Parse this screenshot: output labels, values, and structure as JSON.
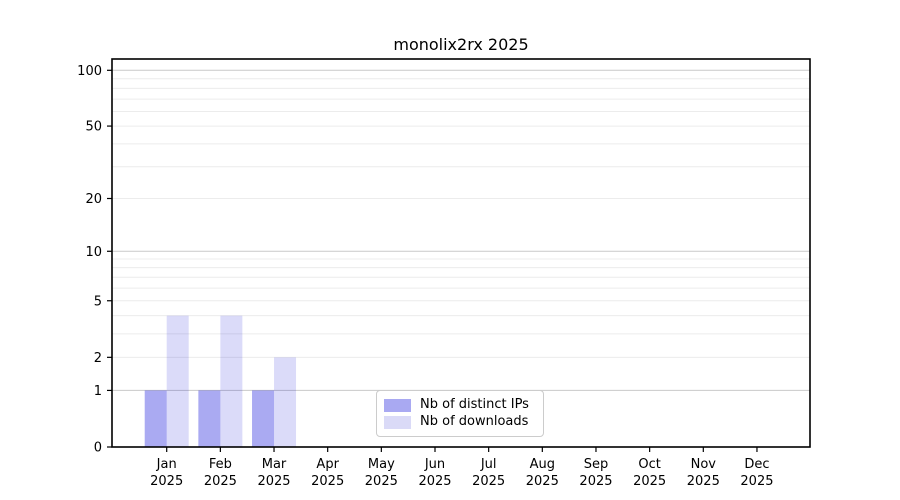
{
  "figure": {
    "background_color": "#ffffff"
  },
  "chart_data": {
    "type": "bar",
    "title": "monolix2rx 2025",
    "xlabel": "",
    "ylabel": "",
    "categories": [
      "Jan",
      "Feb",
      "Mar",
      "Apr",
      "May",
      "Jun",
      "Jul",
      "Aug",
      "Sep",
      "Oct",
      "Nov",
      "Dec"
    ],
    "category_year": "2025",
    "series": [
      {
        "name": "Nb of distinct IPs",
        "key": "distinct-ips",
        "legend_color": "#a9a9f2",
        "fill_opacity": 0.35,
        "values": [
          1,
          1,
          1,
          0,
          0,
          0,
          0,
          0,
          0,
          0,
          0,
          0
        ]
      },
      {
        "name": "Nb of downloads",
        "key": "downloads",
        "legend_color": "#dadaf7",
        "fill_opacity": 0.15,
        "values": [
          4,
          4,
          2,
          0,
          0,
          0,
          0,
          0,
          0,
          0,
          0,
          0
        ]
      }
    ],
    "bar_base_rgb": "12,12,218",
    "y_scale": "log1p",
    "ylim": [
      0,
      115
    ],
    "y_ticks": [
      0,
      1,
      2,
      5,
      10,
      20,
      50,
      100
    ],
    "gridlines": {
      "on": true,
      "minor_values": [
        2,
        3,
        4,
        5,
        6,
        7,
        8,
        9,
        20,
        30,
        40,
        50,
        60,
        70,
        80,
        90
      ],
      "major_values": [
        1,
        10,
        100
      ],
      "minor_color": "#ececec",
      "major_color": "#c9c9c9"
    },
    "legend_position": "bottom-center",
    "axis_color": "#000000",
    "tick_label_color": "#000000"
  }
}
